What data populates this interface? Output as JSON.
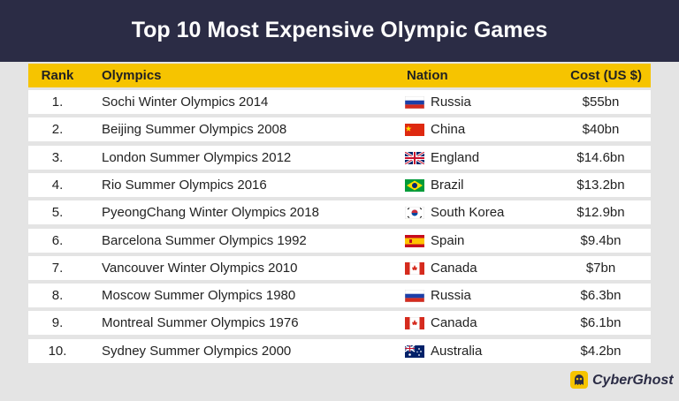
{
  "header": {
    "title": "Top 10 Most Expensive Olympic Games"
  },
  "table": {
    "columns": [
      "Rank",
      "Olympics",
      "Nation",
      "Cost (US $)"
    ],
    "rows": [
      [
        "1.",
        "Sochi Winter Olympics 2014",
        "Russia",
        "$55bn"
      ],
      [
        "2.",
        "Beijing Summer Olympics 2008",
        "China",
        "$40bn"
      ],
      [
        "3.",
        "London Summer Olympics 2012",
        "England",
        "$14.6bn"
      ],
      [
        "4.",
        "Rio Summer Olympics 2016",
        "Brazil",
        "$13.2bn"
      ],
      [
        "5.",
        "PyeongChang Winter Olympics 2018",
        "South Korea",
        "$12.9bn"
      ],
      [
        "6.",
        "Barcelona Summer Olympics 1992",
        "Spain",
        "$9.4bn"
      ],
      [
        "7.",
        "Vancouver Winter Olympics 2010",
        "Canada",
        "$7bn"
      ],
      [
        "8.",
        "Moscow Summer Olympics 1980",
        "Russia",
        "$6.3bn"
      ],
      [
        "9.",
        "Montreal Summer Olympics 1976",
        "Canada",
        "$6.1bn"
      ],
      [
        "10.",
        "Sydney Summer Olympics 2000",
        "Australia",
        "$4.2bn"
      ]
    ]
  },
  "footer": {
    "brand": "CyberGhost"
  }
}
